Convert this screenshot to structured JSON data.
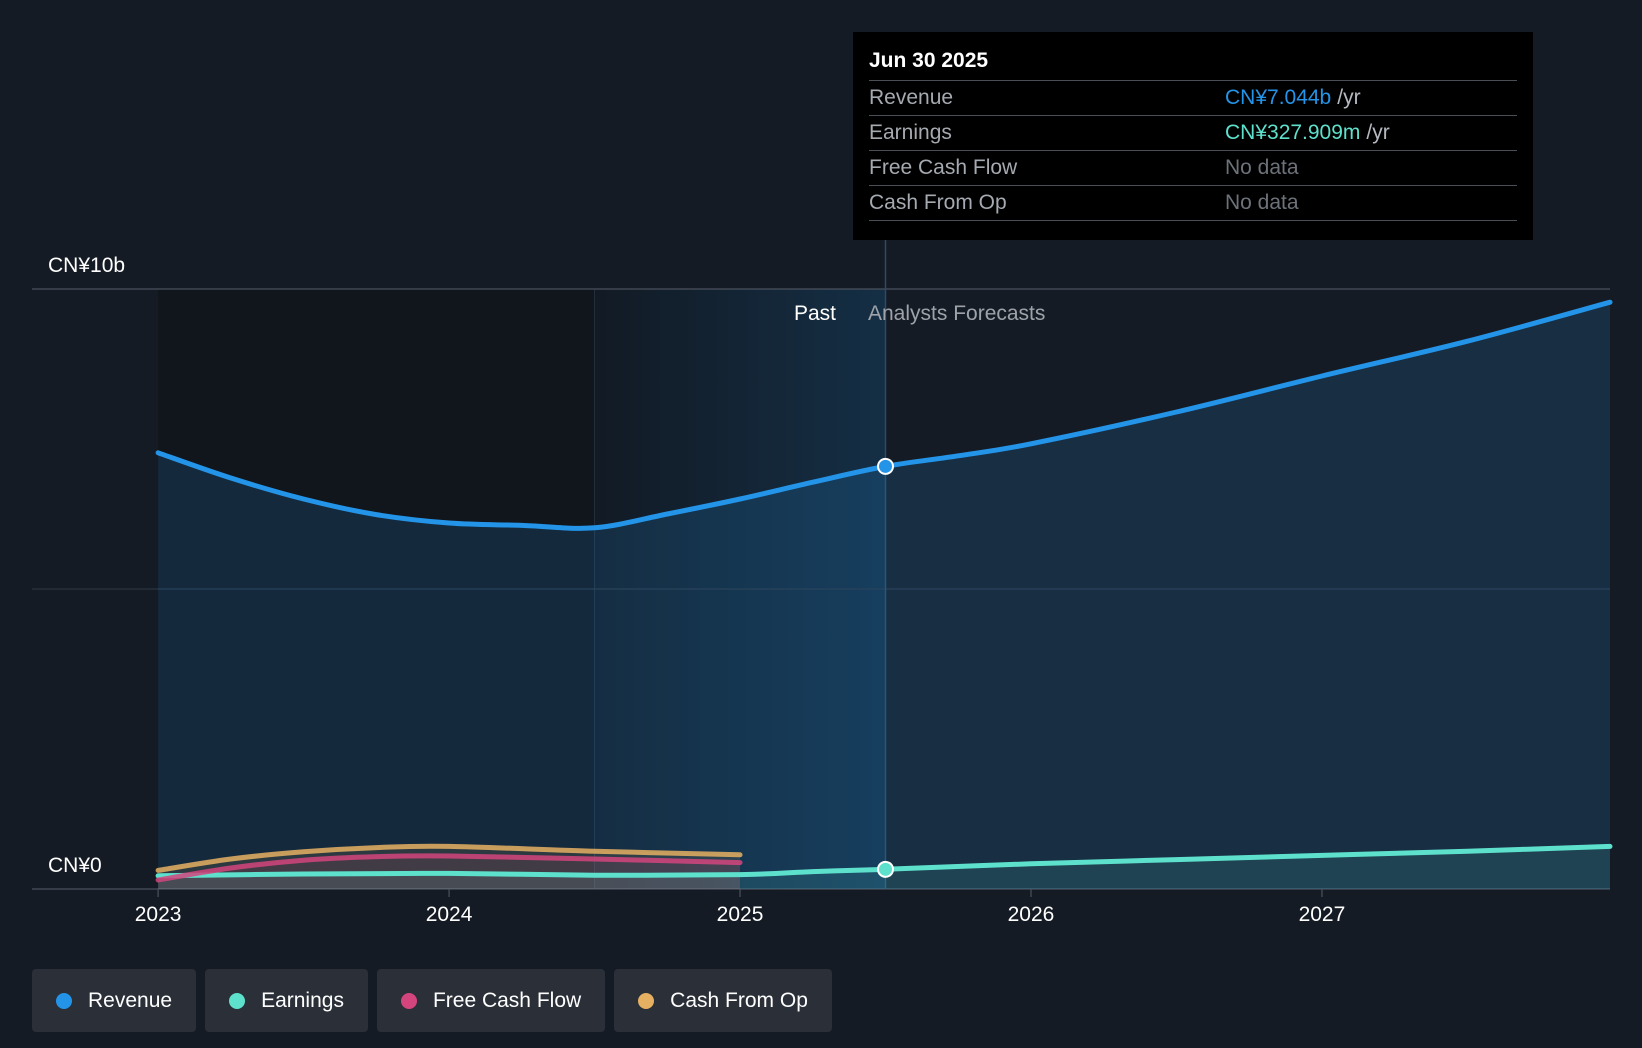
{
  "chart_data": {
    "type": "area",
    "ylabel_top": "CN¥10b",
    "ylabel_bottom": "CN¥0",
    "ylim": [
      0,
      10
    ],
    "unit": "CN¥ billions",
    "x_ticks": [
      "2023",
      "2024",
      "2025",
      "2026",
      "2027"
    ],
    "x_range": [
      2022.79,
      2027.99
    ],
    "past_label": "Past",
    "forecast_label": "Analysts Forecasts",
    "divider_x": 2025.5,
    "past_shade_start": 2024.5,
    "series": [
      {
        "name": "Revenue",
        "color": "#2394e8",
        "points": [
          [
            2023.0,
            7.27
          ],
          [
            2023.25,
            6.85
          ],
          [
            2023.5,
            6.5
          ],
          [
            2023.75,
            6.24
          ],
          [
            2024.0,
            6.1
          ],
          [
            2024.25,
            6.06
          ],
          [
            2024.5,
            6.02
          ],
          [
            2024.75,
            6.25
          ],
          [
            2025.0,
            6.5
          ],
          [
            2025.25,
            6.78
          ],
          [
            2025.5,
            7.044
          ],
          [
            2025.75,
            7.22
          ],
          [
            2026.0,
            7.42
          ],
          [
            2026.5,
            7.95
          ],
          [
            2027.0,
            8.55
          ],
          [
            2027.5,
            9.13
          ],
          [
            2027.99,
            9.78
          ]
        ]
      },
      {
        "name": "Earnings",
        "color": "#5ee1cc",
        "points": [
          [
            2023.0,
            0.22
          ],
          [
            2023.5,
            0.25
          ],
          [
            2024.0,
            0.26
          ],
          [
            2024.5,
            0.23
          ],
          [
            2025.0,
            0.24
          ],
          [
            2025.25,
            0.29
          ],
          [
            2025.5,
            0.328
          ],
          [
            2026.0,
            0.42
          ],
          [
            2026.5,
            0.49
          ],
          [
            2027.0,
            0.56
          ],
          [
            2027.5,
            0.63
          ],
          [
            2027.99,
            0.71
          ]
        ]
      },
      {
        "name": "Free Cash Flow",
        "color": "#d4457e",
        "points": [
          [
            2023.0,
            0.15
          ],
          [
            2023.25,
            0.35
          ],
          [
            2023.5,
            0.48
          ],
          [
            2023.75,
            0.54
          ],
          [
            2024.0,
            0.55
          ],
          [
            2024.5,
            0.5
          ],
          [
            2025.0,
            0.44
          ]
        ]
      },
      {
        "name": "Cash From Op",
        "color": "#e6b062",
        "points": [
          [
            2023.0,
            0.31
          ],
          [
            2023.25,
            0.5
          ],
          [
            2023.5,
            0.62
          ],
          [
            2023.75,
            0.69
          ],
          [
            2024.0,
            0.71
          ],
          [
            2024.5,
            0.63
          ],
          [
            2025.0,
            0.57
          ]
        ]
      }
    ]
  },
  "tooltip": {
    "date": "Jun 30 2025",
    "rows": [
      {
        "name": "Revenue",
        "value": "CN¥7.044b",
        "unit": "/yr",
        "color": "#2394e8"
      },
      {
        "name": "Earnings",
        "value": "CN¥327.909m",
        "unit": "/yr",
        "color": "#5ee1cc"
      },
      {
        "name": "Free Cash Flow",
        "value": "No data",
        "unit": "",
        "color": "#6d727a"
      },
      {
        "name": "Cash From Op",
        "value": "No data",
        "unit": "",
        "color": "#6d727a"
      }
    ]
  },
  "legend": [
    {
      "label": "Revenue",
      "color": "#2394e8"
    },
    {
      "label": "Earnings",
      "color": "#5ee1cc"
    },
    {
      "label": "Free Cash Flow",
      "color": "#d4457e"
    },
    {
      "label": "Cash From Op",
      "color": "#e6b062"
    }
  ]
}
